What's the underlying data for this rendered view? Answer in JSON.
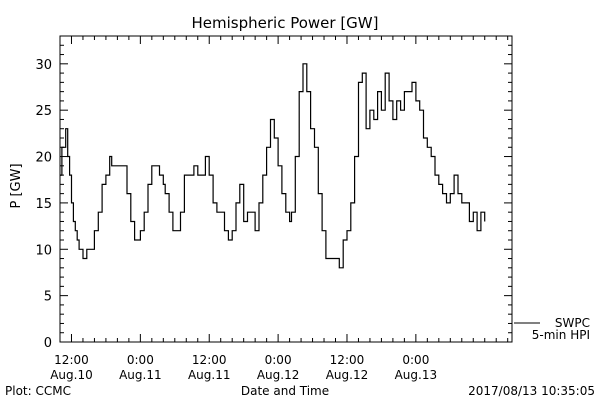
{
  "chart_data": {
    "type": "line",
    "title": "Hemispheric Power [GW]",
    "xlabel": "Date and Time",
    "ylabel": "P [GW]",
    "ylim": [
      0,
      33
    ],
    "xlim": [
      "2017-08-10T10:00",
      "2017-08-13T16:45"
    ],
    "yticks": [
      0,
      5,
      10,
      15,
      20,
      25,
      30
    ],
    "xticks": [
      {
        "t": "2017-08-10T12:00",
        "line1": "12:00",
        "line2": "Aug.10"
      },
      {
        "t": "2017-08-11T00:00",
        "line1": "0:00",
        "line2": "Aug.11"
      },
      {
        "t": "2017-08-11T12:00",
        "line1": "12:00",
        "line2": "Aug.11"
      },
      {
        "t": "2017-08-12T00:00",
        "line1": "0:00",
        "line2": "Aug.12"
      },
      {
        "t": "2017-08-12T12:00",
        "line1": "12:00",
        "line2": "Aug.12"
      },
      {
        "t": "2017-08-13T00:00",
        "line1": "0:00",
        "line2": "Aug.13"
      }
    ],
    "grid": false,
    "legend_position": "bottom-right",
    "series": [
      {
        "name": "SWPC 5-min HPI",
        "color": "#000000",
        "points": [
          [
            "2017-08-10T10:00",
            18
          ],
          [
            "2017-08-10T10:20",
            21
          ],
          [
            "2017-08-10T10:40",
            21
          ],
          [
            "2017-08-10T11:00",
            23
          ],
          [
            "2017-08-10T11:20",
            20
          ],
          [
            "2017-08-10T11:40",
            18
          ],
          [
            "2017-08-10T12:00",
            15
          ],
          [
            "2017-08-10T12:20",
            13
          ],
          [
            "2017-08-10T12:40",
            12
          ],
          [
            "2017-08-10T13:00",
            11
          ],
          [
            "2017-08-10T13:20",
            10
          ],
          [
            "2017-08-10T13:40",
            10
          ],
          [
            "2017-08-10T14:00",
            9
          ],
          [
            "2017-08-10T14:20",
            9
          ],
          [
            "2017-08-10T14:40",
            10
          ],
          [
            "2017-08-10T15:20",
            10
          ],
          [
            "2017-08-10T16:00",
            12
          ],
          [
            "2017-08-10T16:40",
            14
          ],
          [
            "2017-08-10T17:20",
            17
          ],
          [
            "2017-08-10T18:00",
            18
          ],
          [
            "2017-08-10T18:40",
            20
          ],
          [
            "2017-08-10T19:00",
            19
          ],
          [
            "2017-08-10T20:00",
            19
          ],
          [
            "2017-08-10T21:00",
            19
          ],
          [
            "2017-08-10T21:40",
            16
          ],
          [
            "2017-08-10T22:20",
            13
          ],
          [
            "2017-08-10T23:00",
            11
          ],
          [
            "2017-08-10T23:30",
            11
          ],
          [
            "2017-08-11T00:00",
            12
          ],
          [
            "2017-08-11T00:40",
            14
          ],
          [
            "2017-08-11T01:20",
            17
          ],
          [
            "2017-08-11T02:00",
            19
          ],
          [
            "2017-08-11T02:40",
            19
          ],
          [
            "2017-08-11T03:20",
            18
          ],
          [
            "2017-08-11T04:00",
            17
          ],
          [
            "2017-08-11T04:20",
            16
          ],
          [
            "2017-08-11T05:00",
            14
          ],
          [
            "2017-08-11T05:40",
            12
          ],
          [
            "2017-08-11T06:20",
            12
          ],
          [
            "2017-08-11T07:00",
            14
          ],
          [
            "2017-08-11T07:40",
            18
          ],
          [
            "2017-08-11T08:40",
            18
          ],
          [
            "2017-08-11T09:20",
            19
          ],
          [
            "2017-08-11T10:00",
            18
          ],
          [
            "2017-08-11T10:40",
            18
          ],
          [
            "2017-08-11T11:20",
            20
          ],
          [
            "2017-08-11T12:00",
            18
          ],
          [
            "2017-08-11T12:40",
            15
          ],
          [
            "2017-08-11T13:20",
            14
          ],
          [
            "2017-08-11T14:00",
            14
          ],
          [
            "2017-08-11T14:40",
            12
          ],
          [
            "2017-08-11T15:20",
            11
          ],
          [
            "2017-08-11T16:00",
            12
          ],
          [
            "2017-08-11T16:40",
            15
          ],
          [
            "2017-08-11T17:20",
            17
          ],
          [
            "2017-08-11T18:00",
            13
          ],
          [
            "2017-08-11T18:40",
            14
          ],
          [
            "2017-08-11T19:20",
            14
          ],
          [
            "2017-08-11T20:00",
            12
          ],
          [
            "2017-08-11T20:40",
            15
          ],
          [
            "2017-08-11T21:20",
            18
          ],
          [
            "2017-08-11T22:00",
            21
          ],
          [
            "2017-08-11T22:40",
            24
          ],
          [
            "2017-08-11T23:20",
            22
          ],
          [
            "2017-08-12T00:00",
            19
          ],
          [
            "2017-08-12T00:40",
            16
          ],
          [
            "2017-08-12T01:20",
            14
          ],
          [
            "2017-08-12T02:00",
            13
          ],
          [
            "2017-08-12T02:20",
            14
          ],
          [
            "2017-08-12T03:00",
            20
          ],
          [
            "2017-08-12T03:40",
            27
          ],
          [
            "2017-08-12T04:20",
            30
          ],
          [
            "2017-08-12T05:00",
            27
          ],
          [
            "2017-08-12T05:40",
            23
          ],
          [
            "2017-08-12T06:20",
            21
          ],
          [
            "2017-08-12T07:00",
            16
          ],
          [
            "2017-08-12T07:40",
            12
          ],
          [
            "2017-08-12T08:20",
            9
          ],
          [
            "2017-08-12T09:00",
            9
          ],
          [
            "2017-08-12T10:00",
            9
          ],
          [
            "2017-08-12T10:40",
            8
          ],
          [
            "2017-08-12T11:20",
            11
          ],
          [
            "2017-08-12T12:00",
            12
          ],
          [
            "2017-08-12T12:40",
            15
          ],
          [
            "2017-08-12T13:20",
            20
          ],
          [
            "2017-08-12T14:00",
            28
          ],
          [
            "2017-08-12T14:40",
            29
          ],
          [
            "2017-08-12T15:20",
            23
          ],
          [
            "2017-08-12T16:00",
            25
          ],
          [
            "2017-08-12T16:40",
            24
          ],
          [
            "2017-08-12T17:20",
            27
          ],
          [
            "2017-08-12T18:00",
            25
          ],
          [
            "2017-08-12T18:40",
            29
          ],
          [
            "2017-08-12T19:20",
            26
          ],
          [
            "2017-08-12T20:00",
            24
          ],
          [
            "2017-08-12T20:40",
            26
          ],
          [
            "2017-08-12T21:20",
            25
          ],
          [
            "2017-08-12T22:00",
            27
          ],
          [
            "2017-08-12T22:40",
            27
          ],
          [
            "2017-08-12T23:20",
            28
          ],
          [
            "2017-08-13T00:00",
            26
          ],
          [
            "2017-08-13T00:40",
            25
          ],
          [
            "2017-08-13T01:20",
            22
          ],
          [
            "2017-08-13T02:00",
            21
          ],
          [
            "2017-08-13T02:40",
            20
          ],
          [
            "2017-08-13T03:20",
            18
          ],
          [
            "2017-08-13T04:00",
            17
          ],
          [
            "2017-08-13T04:40",
            16
          ],
          [
            "2017-08-13T05:20",
            15
          ],
          [
            "2017-08-13T06:00",
            16
          ],
          [
            "2017-08-13T06:40",
            18
          ],
          [
            "2017-08-13T07:20",
            16
          ],
          [
            "2017-08-13T08:00",
            15
          ],
          [
            "2017-08-13T08:40",
            15
          ],
          [
            "2017-08-13T09:20",
            13
          ],
          [
            "2017-08-13T10:00",
            14
          ],
          [
            "2017-08-13T10:40",
            12
          ],
          [
            "2017-08-13T11:20",
            14
          ],
          [
            "2017-08-13T12:00",
            13
          ]
        ]
      }
    ]
  },
  "legend": {
    "line1": "SWPC",
    "line2": "5-min HPI"
  },
  "footer": {
    "left": "Plot: CCMC",
    "center": "Date and Time",
    "right": "2017/08/13 10:35:05"
  }
}
